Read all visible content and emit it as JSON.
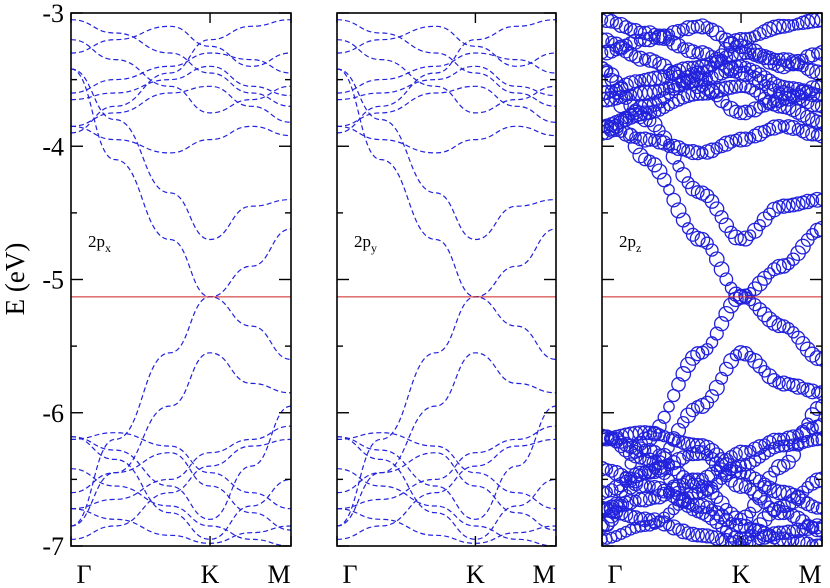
{
  "chart_data": {
    "type": "line",
    "ylabel": "E  (eV)",
    "ylim": [
      -7,
      -3
    ],
    "yticks": [
      -3,
      -4,
      -5,
      -6,
      -7
    ],
    "ytick_labels": [
      "-3",
      "-4",
      "-5",
      "-6",
      "-7"
    ],
    "xtick_labels": [
      "Γ",
      "K",
      "M"
    ],
    "fermi_level": -5.13,
    "grid": false,
    "colors": {
      "bands": "#2222dd",
      "fermi": "#cc2222",
      "frame": "#000000"
    },
    "panels": [
      {
        "label_main": "2p",
        "label_sub": "x",
        "style": "dashed"
      },
      {
        "label_main": "2p",
        "label_sub": "y",
        "style": "dashed"
      },
      {
        "label_main": "2p",
        "label_sub": "z",
        "style": "circles"
      }
    ],
    "bands": [
      {
        "name": "",
        "values": [
          -6.85,
          -6.2,
          -5.55,
          -5.13,
          -5.35,
          -5.6
        ]
      },
      {
        "name": "",
        "values": [
          -3.42,
          -4.1,
          -4.7,
          -5.13,
          -4.9,
          -4.62
        ]
      },
      {
        "name": "",
        "values": [
          -6.85,
          -6.45,
          -5.95,
          -5.55,
          -5.78,
          -5.85
        ]
      },
      {
        "name": "",
        "values": [
          -3.42,
          -3.8,
          -4.35,
          -4.7,
          -4.45,
          -4.4
        ]
      },
      {
        "name": "",
        "values": [
          -6.18,
          -6.28,
          -6.55,
          -6.8,
          -6.4,
          -5.95
        ]
      },
      {
        "name": "",
        "values": [
          -3.85,
          -3.95,
          -4.05,
          -3.95,
          -3.85,
          -3.92
        ]
      },
      {
        "name": "",
        "values": [
          -6.18,
          -6.35,
          -6.75,
          -6.95,
          -6.7,
          -6.5
        ]
      },
      {
        "name": "",
        "values": [
          -3.85,
          -3.75,
          -3.6,
          -3.55,
          -3.7,
          -3.82
        ]
      },
      {
        "name": "",
        "values": [
          -6.2,
          -6.15,
          -6.25,
          -6.45,
          -6.6,
          -6.72
        ]
      },
      {
        "name": "",
        "values": [
          -3.6,
          -3.5,
          -3.4,
          -3.3,
          -3.35,
          -3.45
        ]
      },
      {
        "name": "",
        "values": [
          -6.72,
          -6.65,
          -6.5,
          -6.3,
          -6.2,
          -6.1
        ]
      },
      {
        "name": "",
        "values": [
          -3.2,
          -3.35,
          -3.55,
          -3.75,
          -3.65,
          -3.55
        ]
      },
      {
        "name": "",
        "values": [
          -6.72,
          -6.8,
          -6.92,
          -6.98,
          -6.9,
          -6.85
        ]
      },
      {
        "name": "",
        "values": [
          -3.05,
          -3.15,
          -3.3,
          -3.45,
          -3.6,
          -3.7
        ]
      },
      {
        "name": "",
        "values": [
          -6.42,
          -6.55,
          -6.7,
          -6.85,
          -6.95,
          -7.0
        ]
      },
      {
        "name": "",
        "values": [
          -3.9,
          -3.7,
          -3.45,
          -3.2,
          -3.1,
          -3.05
        ]
      },
      {
        "name": "",
        "values": [
          -6.95,
          -6.85,
          -6.6,
          -6.4,
          -6.25,
          -6.2
        ]
      },
      {
        "name": "",
        "values": [
          -3.65,
          -3.6,
          -3.5,
          -3.4,
          -3.55,
          -3.62
        ]
      },
      {
        "name": "",
        "values": [
          -6.6,
          -6.45,
          -6.3,
          -6.55,
          -6.75,
          -6.88
        ]
      },
      {
        "name": "",
        "values": [
          -3.3,
          -3.2,
          -3.1,
          -3.25,
          -3.4,
          -3.3
        ]
      }
    ]
  }
}
